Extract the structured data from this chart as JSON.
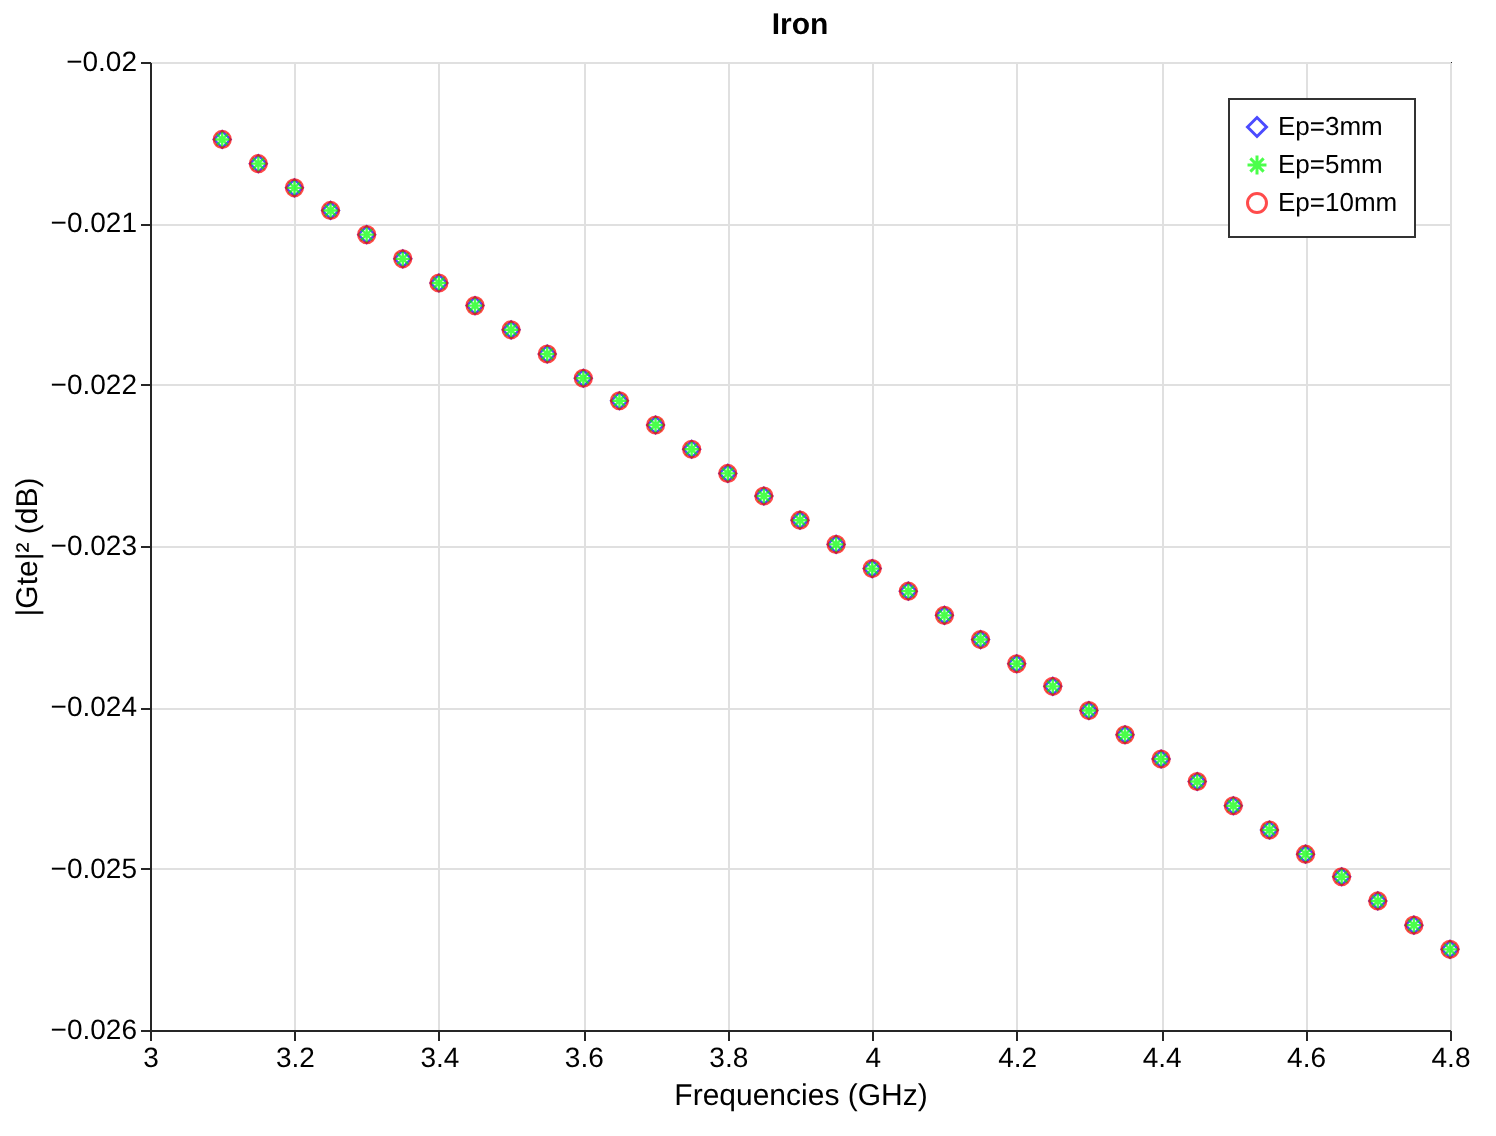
{
  "chart_data": {
    "type": "scatter",
    "title": "Iron",
    "xlabel": "Frequencies (GHz)",
    "ylabel": "|Gte|² (dB)",
    "x": [
      3.1,
      3.15,
      3.2,
      3.25,
      3.3,
      3.35,
      3.4,
      3.45,
      3.5,
      3.55,
      3.6,
      3.65,
      3.7,
      3.75,
      3.8,
      3.85,
      3.9,
      3.95,
      4.0,
      4.05,
      4.1,
      4.15,
      4.2,
      4.25,
      4.3,
      4.35,
      4.4,
      4.45,
      4.5,
      4.55,
      4.6,
      4.65,
      4.7,
      4.75,
      4.8
    ],
    "series": [
      {
        "name": "Ep=3mm",
        "color": "#0000ff",
        "marker": "diamond",
        "values": [
          -0.02048,
          -0.02063,
          -0.02078,
          -0.02092,
          -0.02107,
          -0.02122,
          -0.02137,
          -0.02151,
          -0.02166,
          -0.02181,
          -0.02196,
          -0.0221,
          -0.02225,
          -0.0224,
          -0.02255,
          -0.02269,
          -0.02284,
          -0.02299,
          -0.02314,
          -0.02328,
          -0.02343,
          -0.02358,
          -0.02373,
          -0.02387,
          -0.02402,
          -0.02417,
          -0.02432,
          -0.02446,
          -0.02461,
          -0.02476,
          -0.02491,
          -0.02505,
          -0.0252,
          -0.02535,
          -0.0255
        ]
      },
      {
        "name": "Ep=5mm",
        "color": "#00ff00",
        "marker": "cross",
        "values": [
          -0.02048,
          -0.02063,
          -0.02078,
          -0.02092,
          -0.02107,
          -0.02122,
          -0.02137,
          -0.02151,
          -0.02166,
          -0.02181,
          -0.02196,
          -0.0221,
          -0.02225,
          -0.0224,
          -0.02255,
          -0.02269,
          -0.02284,
          -0.02299,
          -0.02314,
          -0.02328,
          -0.02343,
          -0.02358,
          -0.02373,
          -0.02387,
          -0.02402,
          -0.02417,
          -0.02432,
          -0.02446,
          -0.02461,
          -0.02476,
          -0.02491,
          -0.02505,
          -0.0252,
          -0.02535,
          -0.0255
        ]
      },
      {
        "name": "Ep=10mm",
        "color": "#ff0000",
        "marker": "circle",
        "values": [
          -0.02048,
          -0.02063,
          -0.02078,
          -0.02092,
          -0.02107,
          -0.02122,
          -0.02137,
          -0.02151,
          -0.02166,
          -0.02181,
          -0.02196,
          -0.0221,
          -0.02225,
          -0.0224,
          -0.02255,
          -0.02269,
          -0.02284,
          -0.02299,
          -0.02314,
          -0.02328,
          -0.02343,
          -0.02358,
          -0.02373,
          -0.02387,
          -0.02402,
          -0.02417,
          -0.02432,
          -0.02446,
          -0.02461,
          -0.02476,
          -0.02491,
          -0.02505,
          -0.0252,
          -0.02535,
          -0.0255
        ]
      }
    ],
    "xlim": [
      3,
      4.8
    ],
    "xticks": [
      3,
      3.2,
      3.4,
      3.6,
      3.8,
      4,
      4.2,
      4.4,
      4.6,
      4.8
    ],
    "ylim": [
      -0.026,
      -0.02
    ],
    "yticks": [
      -0.026,
      -0.025,
      -0.024,
      -0.023,
      -0.022,
      -0.021,
      -0.02
    ],
    "grid": true,
    "legend": "top right"
  }
}
